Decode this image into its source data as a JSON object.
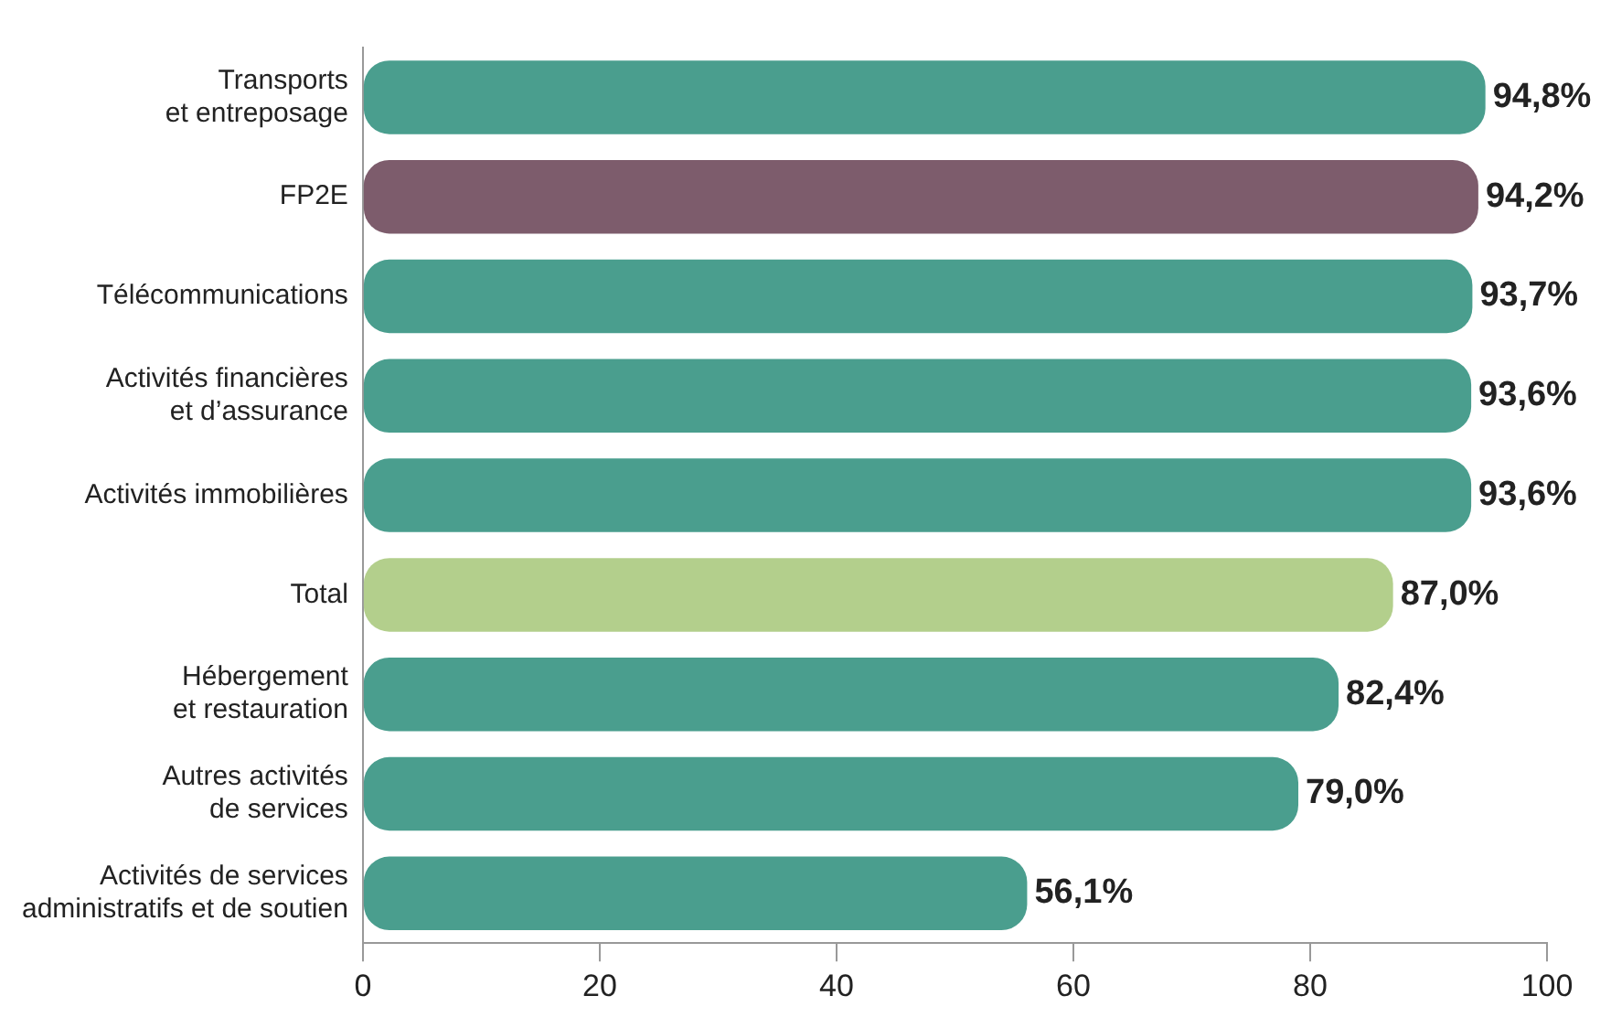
{
  "chart_data": {
    "type": "bar",
    "orientation": "horizontal",
    "categories": [
      "Transports\net entreposage",
      "FP2E",
      "Télécommunications",
      "Activités financières\net d’assurance",
      "Activités immobilières",
      "Total",
      "Hébergement\net restauration",
      "Autres activités\nde services",
      "Activités de services\nadministratifs et de soutien"
    ],
    "values": [
      94.8,
      94.2,
      93.7,
      93.6,
      93.6,
      87.0,
      82.4,
      79.0,
      56.1
    ],
    "colors": [
      "#4a9e8e",
      "#7d5c6c",
      "#4a9e8e",
      "#4a9e8e",
      "#4a9e8e",
      "#b3cf8c",
      "#4a9e8e",
      "#4a9e8e",
      "#4a9e8e"
    ],
    "value_labels": [
      "94,8%",
      "94,2%",
      "93,7%",
      "93,6%",
      "93,6%",
      "87,0%",
      "82,4%",
      "79,0%",
      "56,1%"
    ],
    "xlim": [
      0,
      100
    ],
    "xticks": [
      0,
      20,
      40,
      60,
      80,
      100
    ],
    "grid": false,
    "legend": false
  }
}
